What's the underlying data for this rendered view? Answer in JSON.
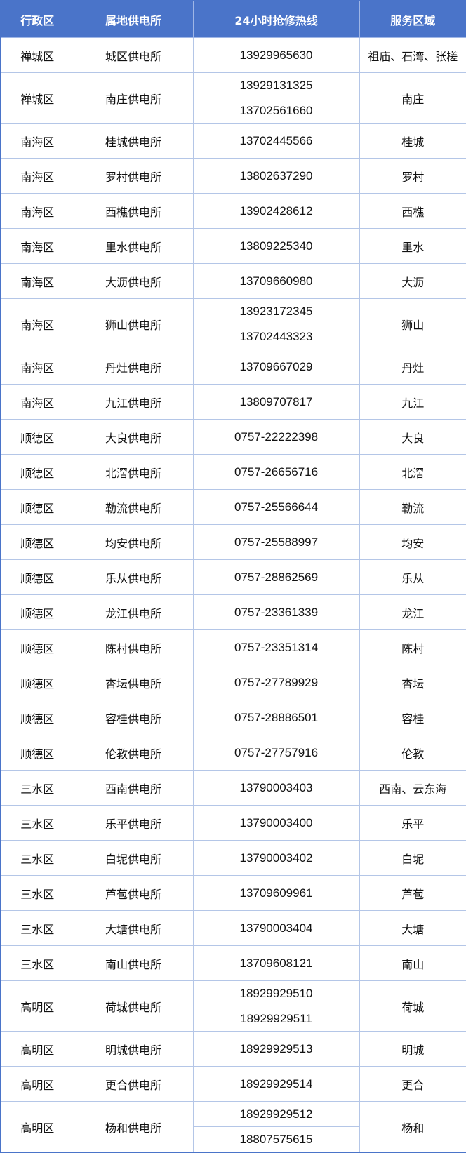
{
  "header": {
    "district": "行政区",
    "station": "属地供电所",
    "hotline": "24小时抢修热线",
    "area": "服务区域"
  },
  "rows": [
    {
      "district": "禅城区",
      "station": "城区供电所",
      "phones": [
        "13929965630"
      ],
      "area": "祖庙、石湾、张槎"
    },
    {
      "district": "禅城区",
      "station": "南庄供电所",
      "phones": [
        "13929131325",
        "13702561660"
      ],
      "area": "南庄"
    },
    {
      "district": "南海区",
      "station": "桂城供电所",
      "phones": [
        "13702445566"
      ],
      "area": "桂城"
    },
    {
      "district": "南海区",
      "station": "罗村供电所",
      "phones": [
        "13802637290"
      ],
      "area": "罗村"
    },
    {
      "district": "南海区",
      "station": "西樵供电所",
      "phones": [
        "13902428612"
      ],
      "area": "西樵"
    },
    {
      "district": "南海区",
      "station": "里水供电所",
      "phones": [
        "13809225340"
      ],
      "area": "里水"
    },
    {
      "district": "南海区",
      "station": "大沥供电所",
      "phones": [
        "13709660980"
      ],
      "area": "大沥"
    },
    {
      "district": "南海区",
      "station": "狮山供电所",
      "phones": [
        "13923172345",
        "13702443323"
      ],
      "area": "狮山"
    },
    {
      "district": "南海区",
      "station": "丹灶供电所",
      "phones": [
        "13709667029"
      ],
      "area": "丹灶"
    },
    {
      "district": "南海区",
      "station": "九江供电所",
      "phones": [
        "13809707817"
      ],
      "area": "九江"
    },
    {
      "district": "顺德区",
      "station": "大良供电所",
      "phones": [
        "0757-22222398"
      ],
      "area": "大良"
    },
    {
      "district": "顺德区",
      "station": "北滘供电所",
      "phones": [
        "0757-26656716"
      ],
      "area": "北滘"
    },
    {
      "district": "顺德区",
      "station": "勒流供电所",
      "phones": [
        "0757-25566644"
      ],
      "area": "勒流"
    },
    {
      "district": "顺德区",
      "station": "均安供电所",
      "phones": [
        "0757-25588997"
      ],
      "area": "均安"
    },
    {
      "district": "顺德区",
      "station": "乐从供电所",
      "phones": [
        "0757-28862569"
      ],
      "area": "乐从"
    },
    {
      "district": "顺德区",
      "station": "龙江供电所",
      "phones": [
        "0757-23361339"
      ],
      "area": "龙江"
    },
    {
      "district": "顺德区",
      "station": "陈村供电所",
      "phones": [
        "0757-23351314"
      ],
      "area": "陈村"
    },
    {
      "district": "顺德区",
      "station": "杏坛供电所",
      "phones": [
        "0757-27789929"
      ],
      "area": "杏坛"
    },
    {
      "district": "顺德区",
      "station": "容桂供电所",
      "phones": [
        "0757-28886501"
      ],
      "area": "容桂"
    },
    {
      "district": "顺德区",
      "station": "伦教供电所",
      "phones": [
        "0757-27757916"
      ],
      "area": "伦教"
    },
    {
      "district": "三水区",
      "station": "西南供电所",
      "phones": [
        "13790003403"
      ],
      "area": "西南、云东海"
    },
    {
      "district": "三水区",
      "station": "乐平供电所",
      "phones": [
        "13790003400"
      ],
      "area": "乐平"
    },
    {
      "district": "三水区",
      "station": "白坭供电所",
      "phones": [
        "13790003402"
      ],
      "area": "白坭"
    },
    {
      "district": "三水区",
      "station": "芦苞供电所",
      "phones": [
        "13709609961"
      ],
      "area": "芦苞"
    },
    {
      "district": "三水区",
      "station": "大塘供电所",
      "phones": [
        "13790003404"
      ],
      "area": "大塘"
    },
    {
      "district": "三水区",
      "station": "南山供电所",
      "phones": [
        "13709608121"
      ],
      "area": "南山"
    },
    {
      "district": "高明区",
      "station": "荷城供电所",
      "phones": [
        "18929929510",
        "18929929511"
      ],
      "area": "荷城"
    },
    {
      "district": "高明区",
      "station": "明城供电所",
      "phones": [
        "18929929513"
      ],
      "area": "明城"
    },
    {
      "district": "高明区",
      "station": "更合供电所",
      "phones": [
        "18929929514"
      ],
      "area": "更合"
    },
    {
      "district": "高明区",
      "station": "杨和供电所",
      "phones": [
        "18929929512",
        "18807575615"
      ],
      "area": "杨和"
    }
  ]
}
